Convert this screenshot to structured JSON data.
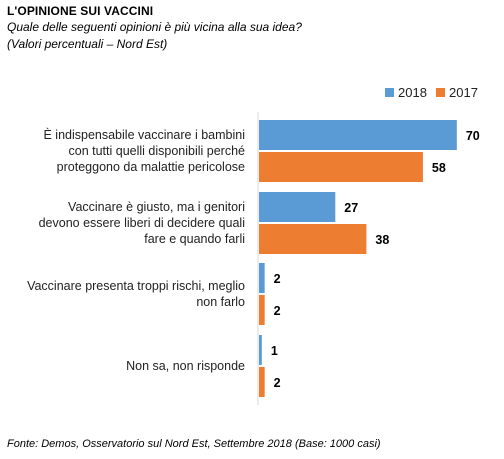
{
  "header": {
    "title": "L'OPINIONE  SUI VACCINI",
    "subtitle": "Quale delle seguenti opinioni è più vicina alla sua idea?",
    "subtitle2": "(Valori percentuali – Nord Est)"
  },
  "footer": {
    "source": "Fonte: Demos, Osservatorio sul Nord Est, Settembre  2018 (Base: 1000 casi)"
  },
  "chart_data": {
    "type": "bar",
    "orientation": "horizontal",
    "categories": [
      [
        "È indispensabile vaccinare i bambini",
        "con tutti quelli disponibili perché",
        "proteggono da malattie pericolose"
      ],
      [
        "Vaccinare è giusto, ma i genitori",
        "devono essere liberi di decidere quali",
        "fare e quando farli"
      ],
      [
        "Vaccinare presenta troppi rischi, meglio",
        "non farlo"
      ],
      [
        "Non sa, non risponde"
      ]
    ],
    "series": [
      {
        "name": "2018",
        "color": "#5B9BD5",
        "values": [
          70,
          27,
          2,
          1
        ]
      },
      {
        "name": "2017",
        "color": "#ED7D31",
        "values": [
          58,
          38,
          2,
          2
        ]
      }
    ],
    "xlim": [
      0,
      75
    ],
    "grid": false,
    "legend_position": "top-right"
  }
}
